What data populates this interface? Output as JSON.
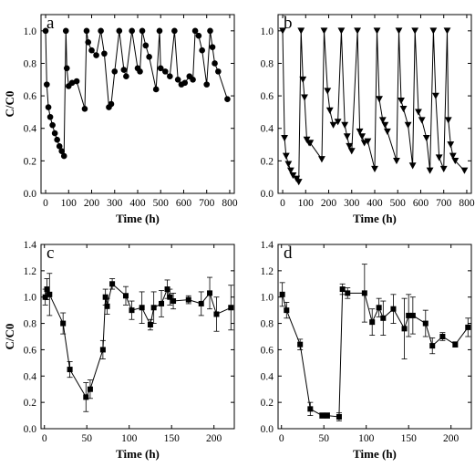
{
  "chart_data": [
    {
      "panel": "a",
      "type": "scatter",
      "marker": "circle",
      "xlabel": "Time (h)",
      "ylabel": "C/C0",
      "xlim": [
        -20,
        820
      ],
      "ylim": [
        0,
        1.1
      ],
      "xticks": [
        0,
        100,
        200,
        300,
        400,
        500,
        600,
        700,
        800
      ],
      "yticks": [
        0.0,
        0.2,
        0.4,
        0.6,
        0.8,
        1.0
      ],
      "tick_decimals": 1,
      "x": [
        0,
        5,
        12,
        20,
        30,
        40,
        50,
        60,
        70,
        80,
        88,
        92,
        100,
        115,
        135,
        170,
        178,
        185,
        200,
        220,
        240,
        255,
        275,
        285,
        300,
        320,
        340,
        350,
        375,
        400,
        410,
        420,
        435,
        450,
        480,
        495,
        500,
        520,
        540,
        560,
        575,
        590,
        605,
        625,
        640,
        650,
        665,
        680,
        700,
        715,
        725,
        735,
        750,
        790
      ],
      "y": [
        1.0,
        0.67,
        0.53,
        0.47,
        0.42,
        0.37,
        0.33,
        0.29,
        0.26,
        0.23,
        1.0,
        0.77,
        0.66,
        0.68,
        0.69,
        0.52,
        1.0,
        0.93,
        0.88,
        0.85,
        1.0,
        0.86,
        0.53,
        0.55,
        0.75,
        1.0,
        0.76,
        0.72,
        1.0,
        0.77,
        0.75,
        1.0,
        0.91,
        0.84,
        0.64,
        1.0,
        0.77,
        0.75,
        0.72,
        1.0,
        0.7,
        0.67,
        0.68,
        0.72,
        0.7,
        1.0,
        0.97,
        0.88,
        0.67,
        1.0,
        0.9,
        0.8,
        0.75,
        0.58
      ]
    },
    {
      "panel": "b",
      "type": "scatter",
      "marker": "triangle-down",
      "xlabel": "Time (h)",
      "ylabel": "",
      "xlim": [
        -20,
        820
      ],
      "ylim": [
        0,
        1.1
      ],
      "xticks": [
        0,
        100,
        200,
        300,
        400,
        500,
        600,
        700,
        800
      ],
      "yticks": [
        0.0,
        0.2,
        0.4,
        0.6,
        0.8,
        1.0
      ],
      "tick_decimals": 1,
      "x": [
        0,
        8,
        15,
        25,
        35,
        45,
        60,
        70,
        80,
        88,
        95,
        105,
        115,
        120,
        170,
        180,
        195,
        205,
        220,
        240,
        255,
        270,
        280,
        290,
        300,
        325,
        335,
        345,
        355,
        370,
        400,
        410,
        420,
        435,
        445,
        455,
        495,
        505,
        515,
        525,
        545,
        565,
        575,
        590,
        605,
        625,
        640,
        655,
        665,
        680,
        700,
        715,
        720,
        730,
        740,
        750,
        790
      ],
      "y": [
        1.0,
        0.34,
        0.23,
        0.18,
        0.14,
        0.11,
        0.09,
        0.07,
        1.0,
        0.7,
        0.59,
        0.33,
        0.31,
        0.31,
        0.21,
        1.0,
        0.63,
        0.51,
        0.42,
        0.44,
        1.0,
        0.42,
        0.35,
        0.29,
        0.26,
        1.0,
        0.38,
        0.35,
        0.31,
        0.32,
        0.15,
        1.0,
        0.58,
        0.45,
        0.42,
        0.38,
        0.2,
        1.0,
        0.57,
        0.52,
        0.42,
        0.17,
        1.0,
        0.5,
        0.45,
        0.34,
        0.14,
        1.0,
        0.6,
        0.22,
        0.15,
        1.0,
        0.45,
        0.3,
        0.23,
        0.2,
        0.14
      ]
    },
    {
      "panel": "c",
      "type": "scatter",
      "marker": "square",
      "xlabel": "Time (h)",
      "ylabel": "C/C0",
      "xlim": [
        -4,
        224
      ],
      "ylim": [
        0,
        1.4
      ],
      "xticks": [
        0,
        50,
        100,
        150,
        200
      ],
      "yticks": [
        0.0,
        0.2,
        0.4,
        0.6,
        0.8,
        1.0,
        1.2,
        1.4
      ],
      "tick_decimals": 1,
      "x": [
        1,
        3,
        6,
        22,
        30,
        49,
        54,
        69,
        72,
        74,
        80,
        96,
        103,
        115,
        125,
        129,
        138,
        145,
        148,
        152,
        170,
        185,
        195,
        203,
        220
      ],
      "y": [
        1.0,
        1.06,
        1.02,
        0.8,
        0.45,
        0.24,
        0.3,
        0.6,
        1.0,
        0.93,
        1.1,
        1.01,
        0.9,
        0.92,
        0.79,
        0.92,
        0.95,
        1.06,
        1.0,
        0.97,
        0.98,
        0.95,
        1.03,
        0.87,
        0.92
      ],
      "error": [
        0.06,
        0.08,
        0.16,
        0.08,
        0.06,
        0.11,
        0.07,
        0.07,
        0.06,
        0.06,
        0.04,
        0.07,
        0.07,
        0.12,
        0.04,
        0.12,
        0.1,
        0.07,
        0.06,
        0.06,
        0.03,
        0.09,
        0.12,
        0.13,
        0.17
      ]
    },
    {
      "panel": "d",
      "type": "scatter",
      "marker": "square",
      "xlabel": "Time (h)",
      "ylabel": "",
      "xlim": [
        -4,
        224
      ],
      "ylim": [
        0,
        1.4
      ],
      "xticks": [
        0,
        50,
        100,
        150,
        200
      ],
      "yticks": [
        0.0,
        0.2,
        0.4,
        0.6,
        0.8,
        1.0,
        1.2,
        1.4
      ],
      "tick_decimals": 1,
      "x": [
        1,
        6,
        22,
        34,
        48,
        54,
        68,
        72,
        78,
        98,
        107,
        115,
        120,
        132,
        145,
        150,
        155,
        170,
        178,
        190,
        205,
        220
      ],
      "y": [
        1.02,
        0.9,
        0.64,
        0.15,
        0.1,
        0.1,
        0.09,
        1.06,
        1.03,
        1.03,
        0.81,
        0.92,
        0.84,
        0.91,
        0.76,
        0.86,
        0.86,
        0.8,
        0.63,
        0.7,
        0.64,
        0.77
      ],
      "error": [
        0.09,
        0.06,
        0.04,
        0.05,
        0.02,
        0.02,
        0.03,
        0.04,
        0.04,
        0.22,
        0.1,
        0.07,
        0.13,
        0.11,
        0.23,
        0.16,
        0.14,
        0.1,
        0.06,
        0.03,
        0.02,
        0.07
      ]
    }
  ]
}
